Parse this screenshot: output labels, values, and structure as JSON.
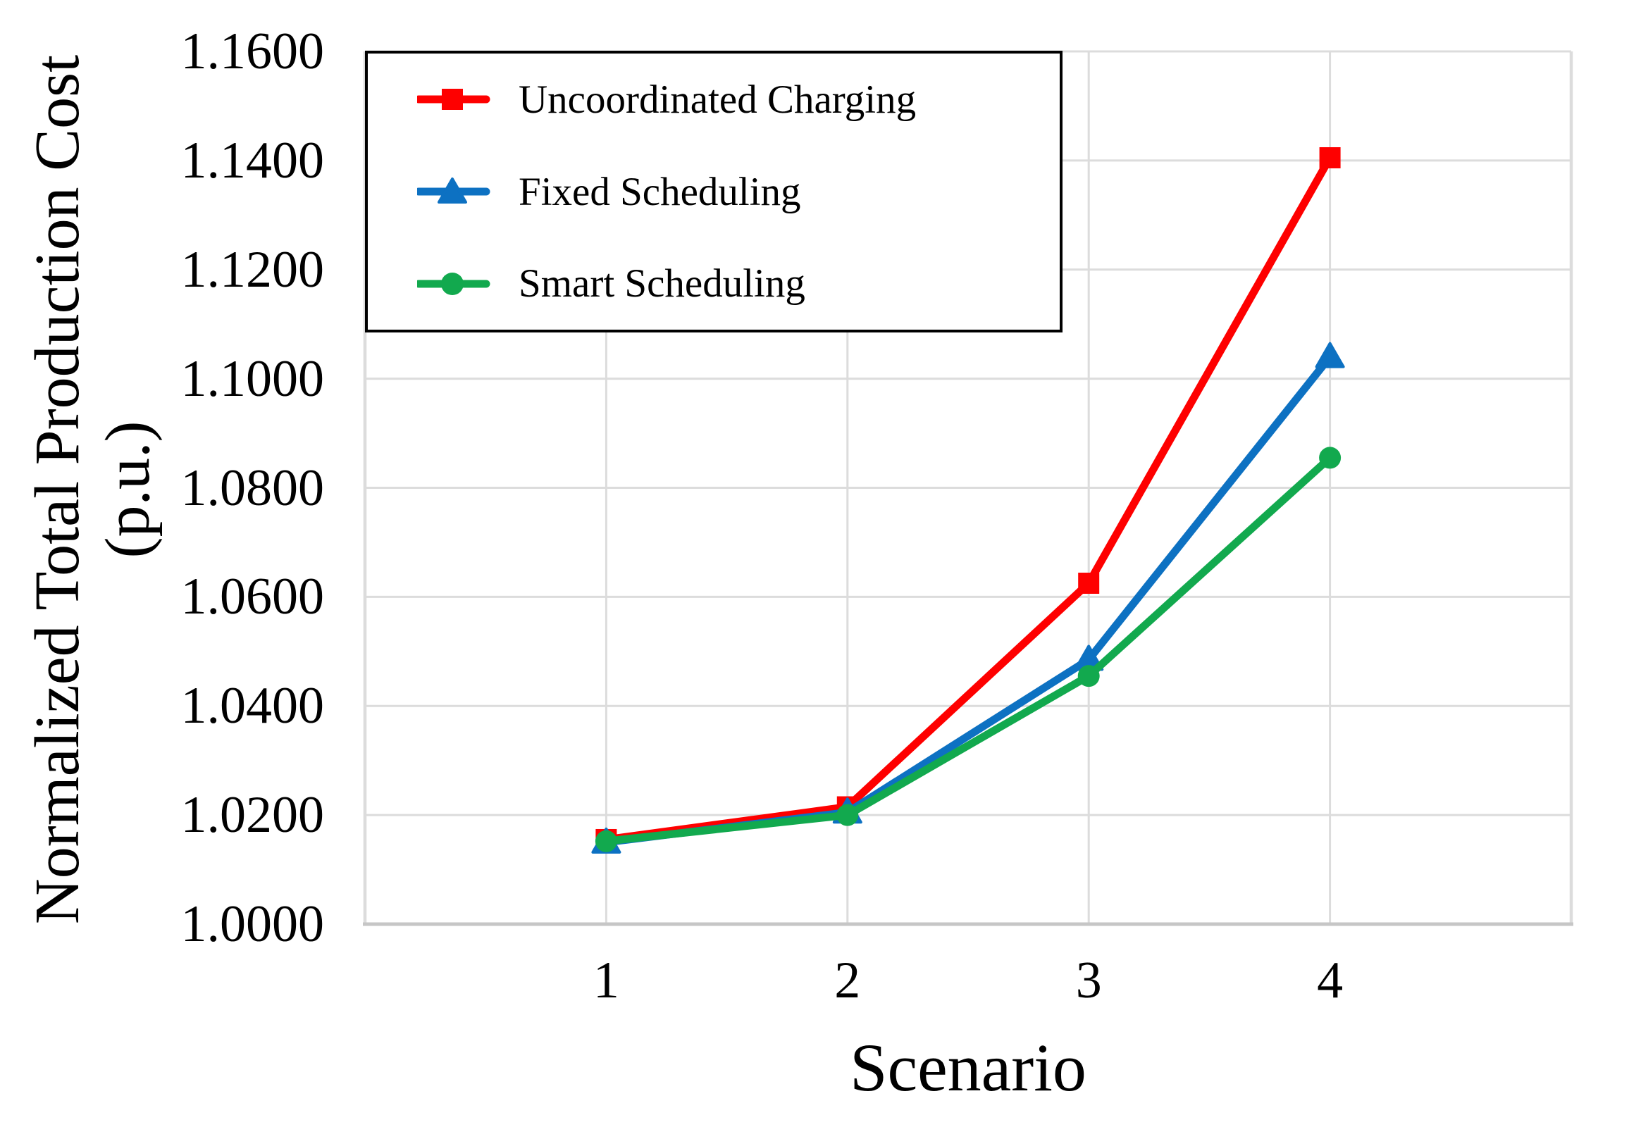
{
  "figure": {
    "background": "#FFFFFF",
    "text_color": "#000000"
  },
  "chart_data": {
    "type": "line",
    "title": "",
    "xlabel": "Scenario",
    "ylabel_line1": "Normalized Total Production Cost",
    "ylabel_line2": "(p.u.)",
    "categories": [
      "1",
      "2",
      "3",
      "4"
    ],
    "x_values": [
      1,
      2,
      3,
      4
    ],
    "series": [
      {
        "name": "Uncoordinated Charging",
        "color": "#FE0000",
        "marker": "square",
        "values": [
          1.0155,
          1.0215,
          1.0625,
          1.1405
        ]
      },
      {
        "name": "Fixed Scheduling",
        "color": "#0D71C2",
        "marker": "triangle",
        "values": [
          1.015,
          1.0205,
          1.0485,
          1.104
        ]
      },
      {
        "name": "Smart Scheduling",
        "color": "#12A94E",
        "marker": "circle",
        "values": [
          1.0152,
          1.02,
          1.0455,
          1.0855
        ]
      }
    ],
    "ylim": [
      1.0,
      1.16
    ],
    "y_tick_step": 0.02,
    "y_tick_labels": [
      "1.0000",
      "1.0200",
      "1.0400",
      "1.0600",
      "1.0800",
      "1.1000",
      "1.1200",
      "1.1400",
      "1.1600"
    ],
    "grid": true,
    "legend_position": "top-left",
    "gridline_color": "#DCDCDC",
    "axis_line_color": "#C6C6C6",
    "legend_border_color": "#000000"
  }
}
